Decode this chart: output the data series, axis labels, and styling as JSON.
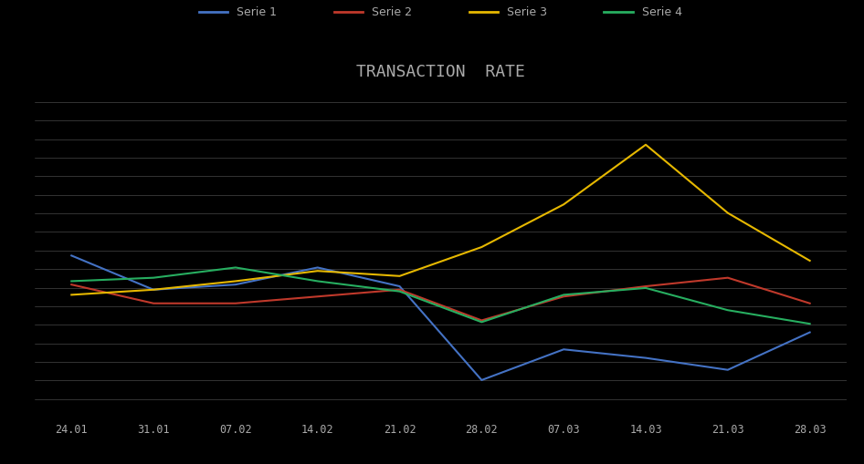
{
  "title": "TRANSACTION  RATE",
  "background_color": "#000000",
  "text_color": "#aaaaaa",
  "x_labels": [
    "24.01",
    "31.01",
    "07.02",
    "14.02",
    "21.02",
    "28.02",
    "07.03",
    "14.03",
    "21.03",
    "28.03"
  ],
  "series": [
    {
      "color": "#4472c4",
      "label": "Serie 1",
      "values": [
        85,
        65,
        68,
        78,
        67,
        12,
        30,
        25,
        18,
        40
      ]
    },
    {
      "color": "#c0392b",
      "label": "Serie 2",
      "values": [
        68,
        57,
        57,
        61,
        65,
        47,
        61,
        67,
        72,
        57
      ]
    },
    {
      "color": "#e6b800",
      "label": "Serie 3",
      "values": [
        62,
        65,
        70,
        76,
        73,
        90,
        115,
        150,
        110,
        82
      ]
    },
    {
      "color": "#27ae60",
      "label": "Serie 4",
      "values": [
        70,
        72,
        78,
        70,
        64,
        46,
        62,
        66,
        53,
        45
      ]
    }
  ],
  "ylim": [
    -10,
    175
  ],
  "num_gridlines": 18,
  "figsize": [
    9.46,
    5.09
  ],
  "dpi": 100
}
